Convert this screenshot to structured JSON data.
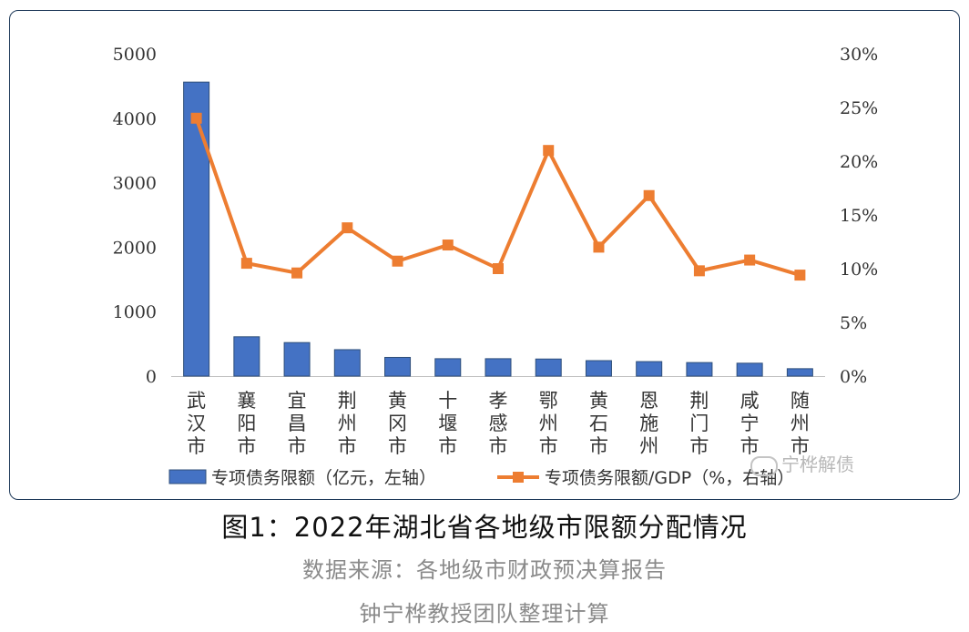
{
  "chart_data": {
    "type": "bar+line",
    "categories": [
      "武\n汉\n市",
      "襄\n阳\n市",
      "宜\n昌\n市",
      "荆\n州\n市",
      "黄\n冈\n市",
      "十\n堰\n市",
      "孝\n感\n市",
      "鄂\n州\n市",
      "黄\n石\n市",
      "恩\n施\n州",
      "荆\n门\n市",
      "咸\n宁\n市",
      "随\n州\n市"
    ],
    "series": [
      {
        "name": "专项债务限额（亿元，左轴）",
        "type": "bar",
        "axis": "left",
        "color": "#4472c4",
        "values": [
          4560,
          610,
          520,
          410,
          290,
          270,
          270,
          265,
          240,
          225,
          210,
          200,
          115
        ]
      },
      {
        "name": "专项债务限额/GDP（%，右轴）",
        "type": "line",
        "axis": "right",
        "color": "#ed7d31",
        "values": [
          24.0,
          10.5,
          9.6,
          13.8,
          10.7,
          12.2,
          10.0,
          21.0,
          12.0,
          16.8,
          9.8,
          10.8,
          9.4
        ]
      }
    ],
    "y_left": {
      "ticks": [
        "0",
        "1000",
        "2000",
        "3000",
        "4000",
        "5000"
      ],
      "range": [
        0,
        5000
      ]
    },
    "y_right": {
      "ticks": [
        "0%",
        "5%",
        "10%",
        "15%",
        "20%",
        "25%",
        "30%"
      ],
      "range": [
        0,
        30
      ]
    },
    "legend_position": "bottom",
    "grid": false
  },
  "caption": {
    "title": "图1：2022年湖北省各地级市限额分配情况",
    "source": "数据来源：各地级市财政预决算报告",
    "credit": "钟宁桦教授团队整理计算"
  },
  "watermark": {
    "text": "宁桦解债",
    "icon": "wechat-icon"
  }
}
